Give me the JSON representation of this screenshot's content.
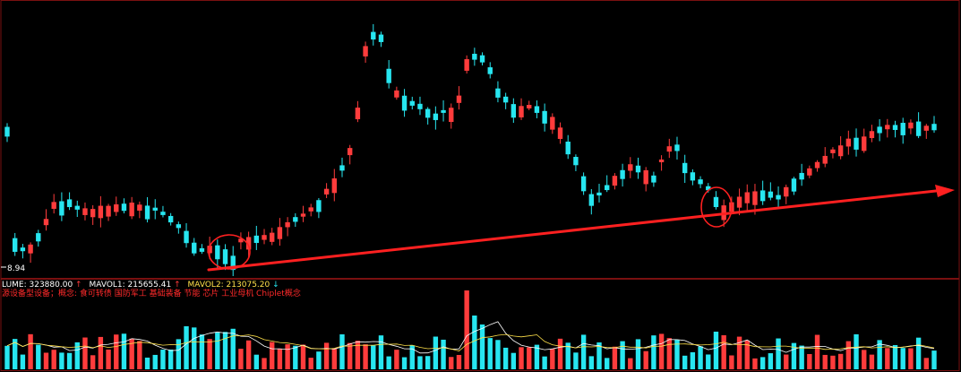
{
  "colors": {
    "background": "#000000",
    "up": "#ff3c3c",
    "down": "#27e6f0",
    "frame": "#7a1010",
    "trend": "#ff2020",
    "ma1": "#ffffff",
    "ma2": "#ffe14a",
    "info_label": "#ffffff",
    "info_value": "#ffe14a",
    "concept": "#ff2a2a"
  },
  "price_panel": {
    "low_label": "8.94"
  },
  "volume_panel": {
    "info": {
      "volume_label": "LUME: 323880.00",
      "volume_arrow": "↑",
      "mavol1_label": "MAVOL1: 215655.41",
      "mavol1_arrow": "↑",
      "mavol2_label": "MAVOL2: 213075.20",
      "mavol2_arrow": "↓"
    },
    "concepts": "源设备型设备；概念: 食可转债 国防军工 基础装备 节能 芯片 工业母机 Chiplet概念"
  },
  "chart_data": [
    {
      "type": "candlestick",
      "title": "",
      "count": 120,
      "annotations": [
        "trend-line-arrow",
        "circle-marker-1",
        "circle-marker-2"
      ]
    },
    {
      "type": "bar",
      "title": "",
      "series": [
        "VOLUME",
        "MAVOL1",
        "MAVOL2"
      ]
    }
  ]
}
